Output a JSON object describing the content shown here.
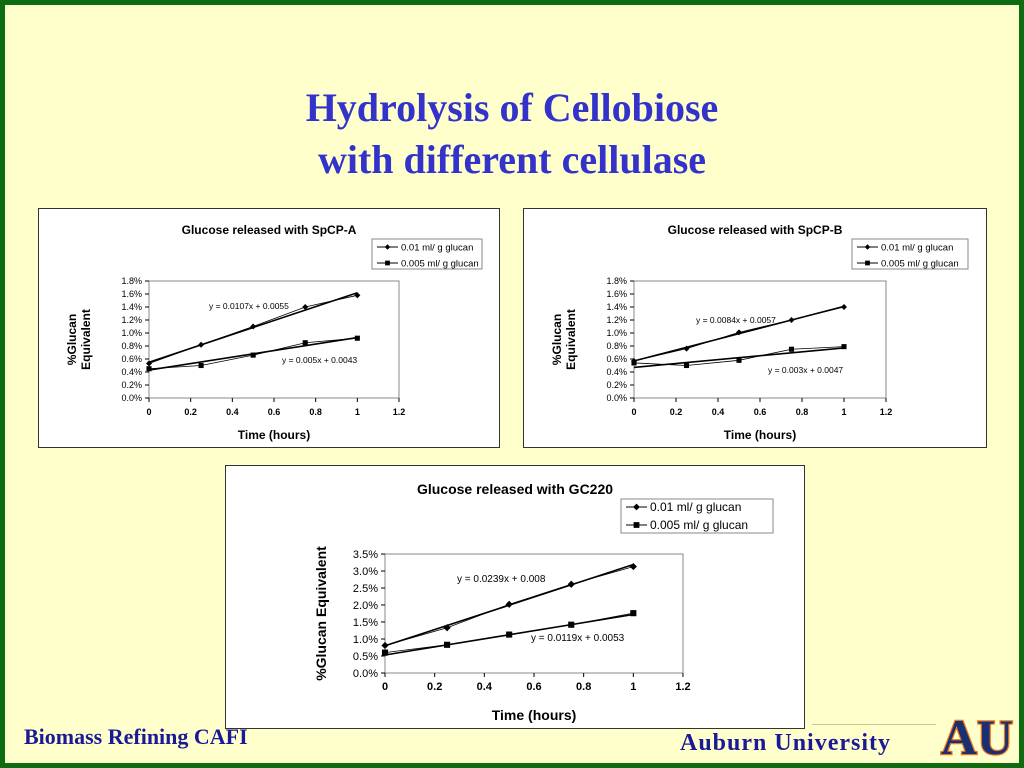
{
  "slide": {
    "title_line1": "Hydrolysis of Cellobiose",
    "title_line2": "with different cellulase",
    "footer_left": "Biomass Refining CAFI",
    "footer_right": "Auburn University",
    "logo_text": "AU",
    "colors": {
      "background": "#ffffcc",
      "title": "#3333cc",
      "footer": "#1a1a99",
      "frame": "#0f6b0f",
      "logo_blue": "#1b2f73",
      "logo_orange": "#e87722"
    }
  },
  "chart_data": [
    {
      "type": "line",
      "title": "Glucose released with SpCP-A",
      "xlabel": "Time (hours)",
      "ylabel": "%Glucan Equivalent",
      "ylabel_lines": [
        "%Glucan",
        "Equivalent"
      ],
      "xlim": [
        0,
        1.2
      ],
      "ylim": [
        0,
        0.018
      ],
      "xticks": [
        "0",
        "0.2",
        "0.4",
        "0.6",
        "0.8",
        "1",
        "1.2"
      ],
      "yticks": [
        "0.0%",
        "0.2%",
        "0.4%",
        "0.6%",
        "0.8%",
        "1.0%",
        "1.2%",
        "1.4%",
        "1.6%",
        "1.8%"
      ],
      "grid": false,
      "legend_position": "top-right",
      "x": [
        0,
        0.25,
        0.5,
        0.75,
        1
      ],
      "series": [
        {
          "name": "0.01 ml/ g glucan",
          "marker": "diamond",
          "values": [
            0.0053,
            0.0082,
            0.011,
            0.014,
            0.0158
          ],
          "trend": {
            "slope": 0.0107,
            "intercept": 0.0055,
            "label": "y = 0.0107x + 0.0055"
          }
        },
        {
          "name": "0.005 ml/ g glucan",
          "marker": "square",
          "values": [
            0.0045,
            0.005,
            0.0066,
            0.0085,
            0.0092
          ],
          "trend": {
            "slope": 0.005,
            "intercept": 0.0043,
            "label": "y = 0.005x + 0.0043"
          }
        }
      ]
    },
    {
      "type": "line",
      "title": "Glucose released with SpCP-B",
      "xlabel": "Time (hours)",
      "ylabel": "%Glucan Equivalent",
      "ylabel_lines": [
        "%Glucan",
        "Equivalent"
      ],
      "xlim": [
        0,
        1.2
      ],
      "ylim": [
        0,
        0.018
      ],
      "xticks": [
        "0",
        "0.2",
        "0.4",
        "0.6",
        "0.8",
        "1",
        "1.2"
      ],
      "yticks": [
        "0.0%",
        "0.2%",
        "0.4%",
        "0.6%",
        "0.8%",
        "1.0%",
        "1.2%",
        "1.4%",
        "1.6%",
        "1.8%"
      ],
      "grid": false,
      "legend_position": "top-right",
      "x": [
        0,
        0.25,
        0.5,
        0.75,
        1
      ],
      "series": [
        {
          "name": "0.01 ml/ g glucan",
          "marker": "diamond",
          "values": [
            0.0057,
            0.0076,
            0.0101,
            0.012,
            0.014
          ],
          "trend": {
            "slope": 0.0084,
            "intercept": 0.0057,
            "label": "y = 0.0084x + 0.0057"
          }
        },
        {
          "name": "0.005 ml/ g glucan",
          "marker": "square",
          "values": [
            0.0054,
            0.005,
            0.0058,
            0.0075,
            0.0079
          ],
          "trend": {
            "slope": 0.003,
            "intercept": 0.0047,
            "label": "y = 0.003x + 0.0047"
          }
        }
      ]
    },
    {
      "type": "line",
      "title": "Glucose released with GC220",
      "xlabel": "Time (hours)",
      "ylabel": "%Glucan Equivalent",
      "ylabel_lines": [
        "%Glucan Equivalent"
      ],
      "xlim": [
        0,
        1.2
      ],
      "ylim": [
        0,
        0.035
      ],
      "xticks": [
        "0",
        "0.2",
        "0.4",
        "0.6",
        "0.8",
        "1",
        "1.2"
      ],
      "yticks": [
        "0.0%",
        "0.5%",
        "1.0%",
        "1.5%",
        "2.0%",
        "2.5%",
        "3.0%",
        "3.5%"
      ],
      "grid": false,
      "legend_position": "top-right",
      "x": [
        0,
        0.25,
        0.5,
        0.75,
        1
      ],
      "series": [
        {
          "name": "0.01 ml/ g glucan",
          "marker": "diamond",
          "values": [
            0.0081,
            0.0133,
            0.0202,
            0.0261,
            0.0313
          ],
          "trend": {
            "slope": 0.0239,
            "intercept": 0.008,
            "label": "y = 0.0239x + 0.008"
          }
        },
        {
          "name": "0.005 ml/ g glucan",
          "marker": "square",
          "values": [
            0.006,
            0.0083,
            0.0113,
            0.0142,
            0.0176
          ],
          "trend": {
            "slope": 0.0119,
            "intercept": 0.0053,
            "label": "y = 0.0119x + 0.0053"
          }
        }
      ]
    }
  ]
}
